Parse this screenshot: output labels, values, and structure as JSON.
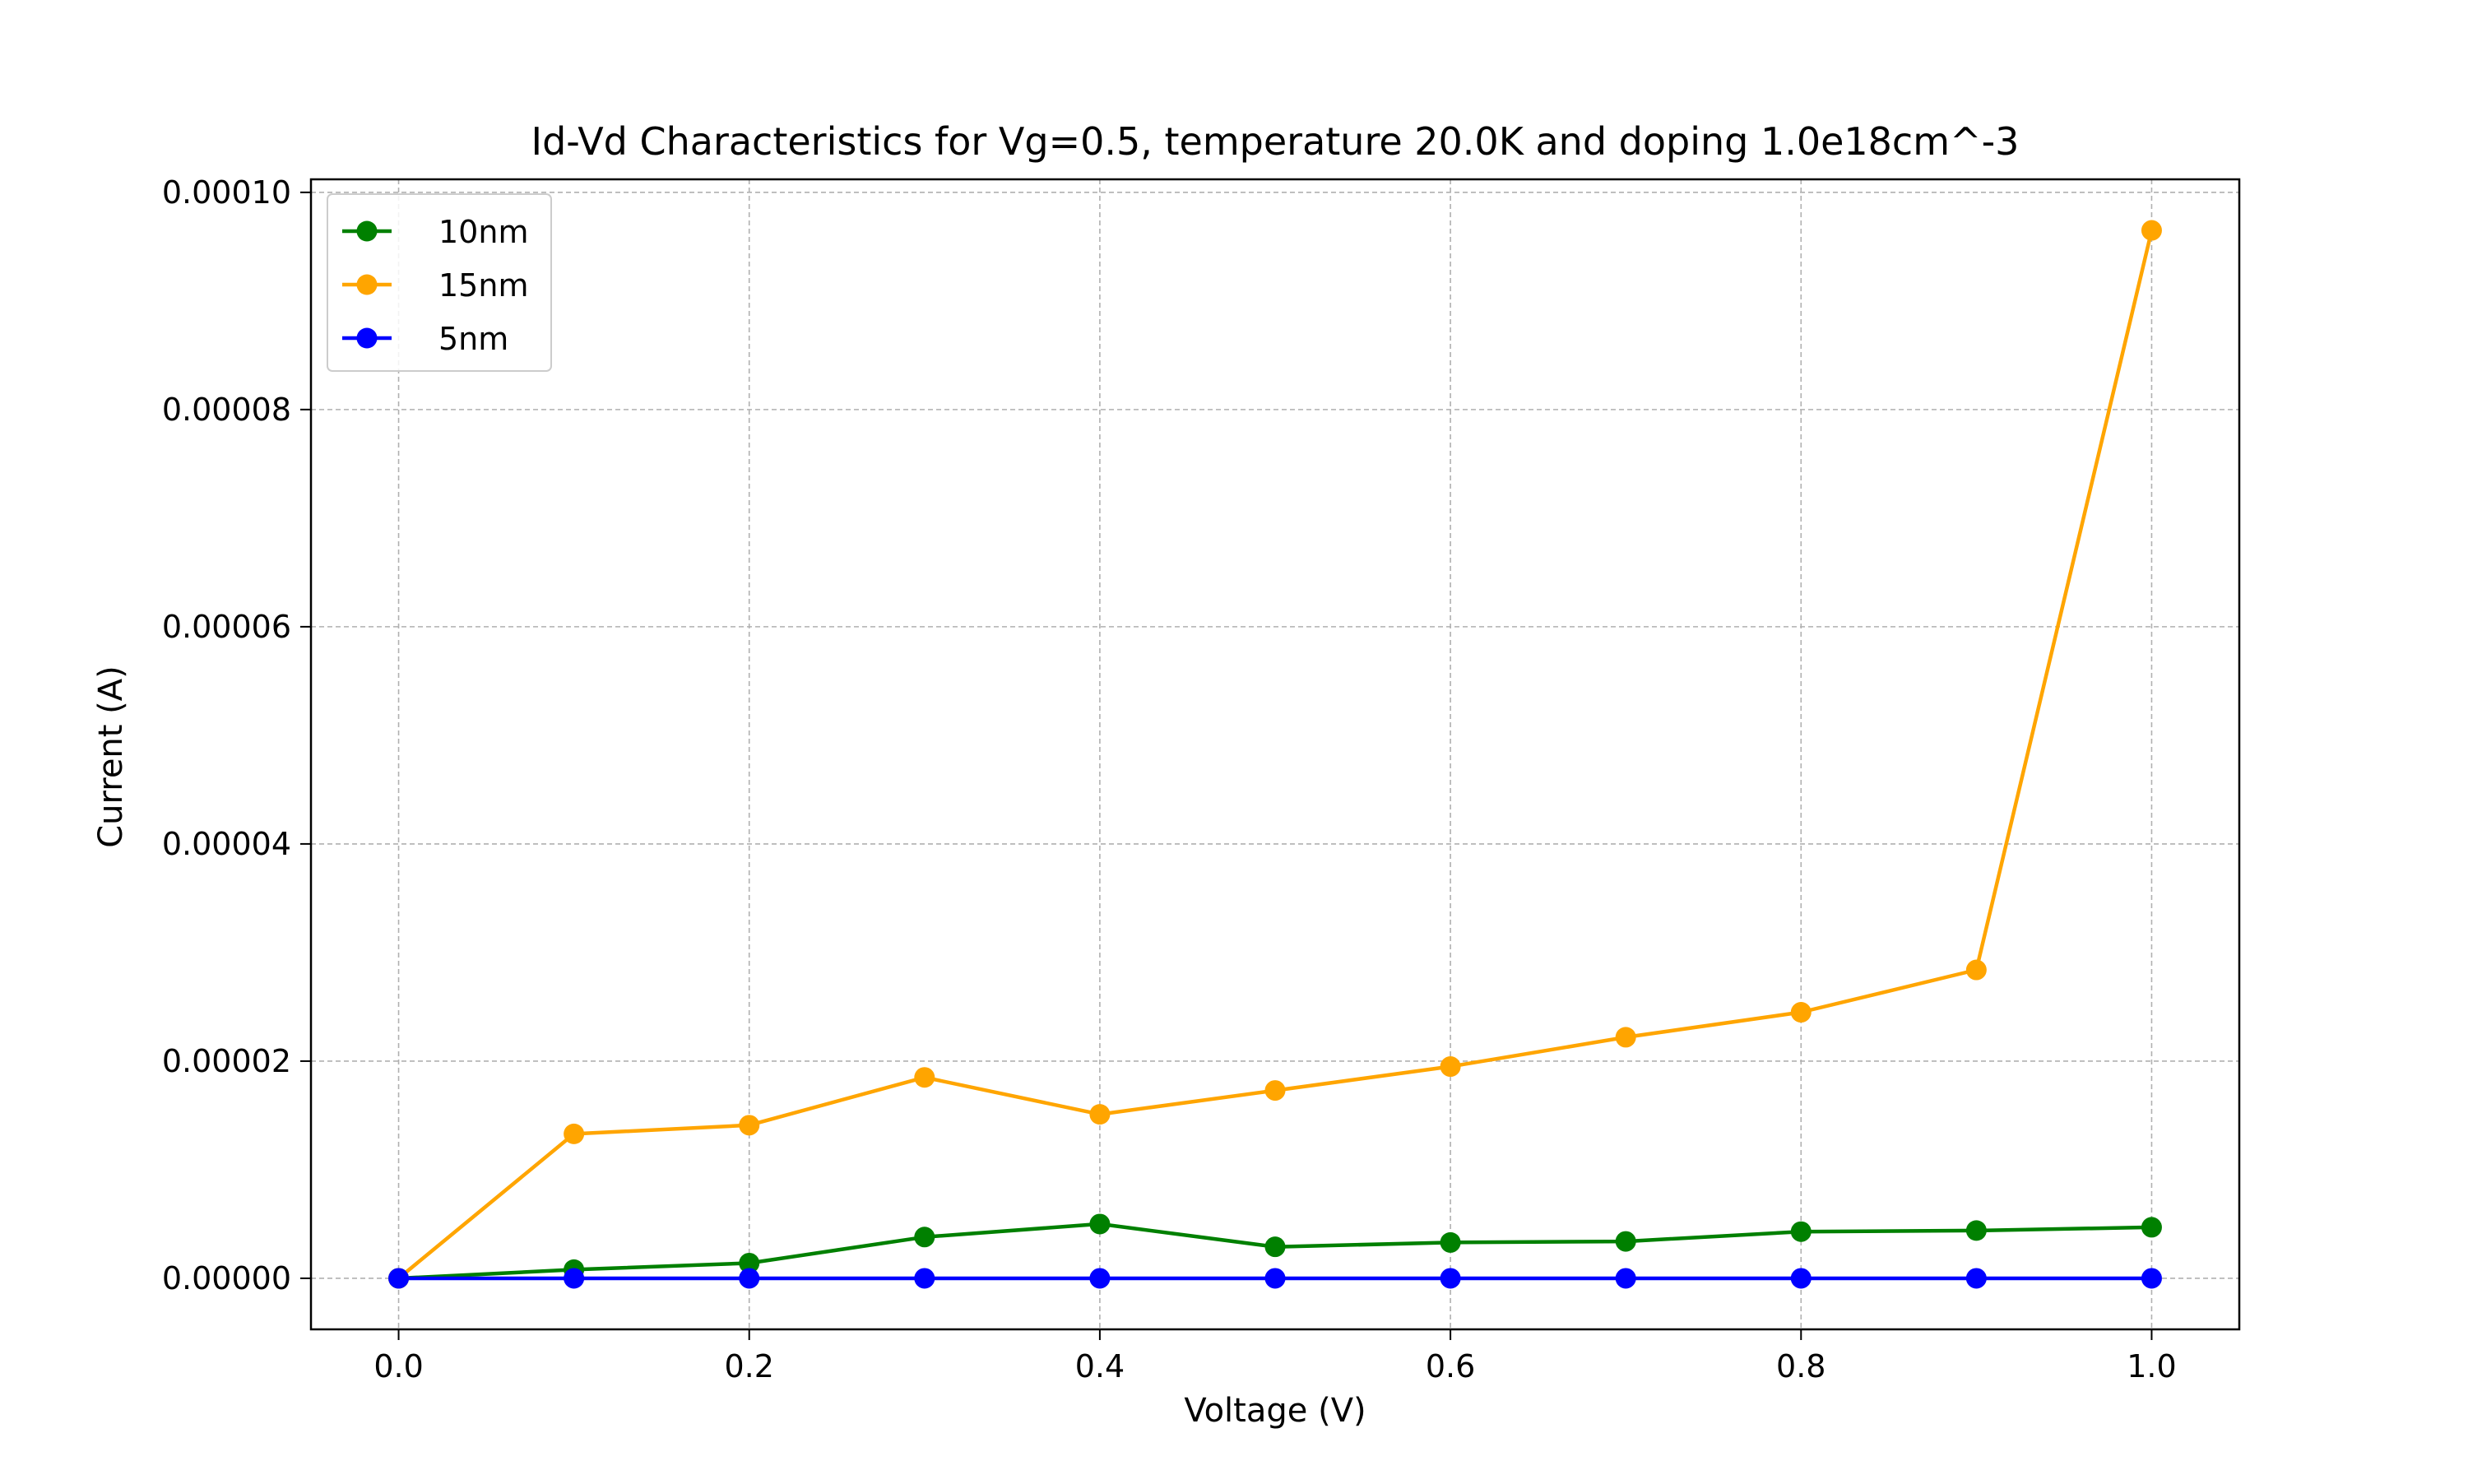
{
  "chart_data": {
    "type": "line",
    "title": "Id-Vd Characteristics for Vg=0.5, temperature 20.0K and doping 1.0e18cm^-3",
    "xlabel": "Voltage (V)",
    "ylabel": "Current (A)",
    "xlim": [
      -0.05,
      1.05
    ],
    "ylim": [
      -4.7e-06,
      0.0001012
    ],
    "x": [
      0.0,
      0.1,
      0.2,
      0.3,
      0.4,
      0.5,
      0.6,
      0.7,
      0.8,
      0.9,
      1.0
    ],
    "xticks": [
      0.0,
      0.2,
      0.4,
      0.6,
      0.8,
      1.0
    ],
    "xtick_labels": [
      "0.0",
      "0.2",
      "0.4",
      "0.6",
      "0.8",
      "1.0"
    ],
    "yticks": [
      0.0,
      2e-05,
      4e-05,
      6e-05,
      8e-05,
      0.0001
    ],
    "ytick_labels": [
      "0.00000",
      "0.00002",
      "0.00004",
      "0.00006",
      "0.00008",
      "0.00010"
    ],
    "grid": true,
    "legend_position": "upper-left",
    "series": [
      {
        "name": "10nm",
        "color": "#008000",
        "values": [
          0.0,
          8e-07,
          1.4e-06,
          3.8e-06,
          5e-06,
          2.9e-06,
          3.3e-06,
          3.4e-06,
          4.3e-06,
          4.4e-06,
          4.7e-06
        ]
      },
      {
        "name": "15nm",
        "color": "#FFA500",
        "values": [
          0.0,
          1.33e-05,
          1.41e-05,
          1.85e-05,
          1.51e-05,
          1.73e-05,
          1.95e-05,
          2.22e-05,
          2.45e-05,
          2.84e-05,
          9.65e-05
        ]
      },
      {
        "name": "5nm",
        "color": "#0000FF",
        "values": [
          0.0,
          0.0,
          0.0,
          0.0,
          0.0,
          0.0,
          0.0,
          0.0,
          0.0,
          0.0,
          0.0
        ]
      }
    ]
  }
}
